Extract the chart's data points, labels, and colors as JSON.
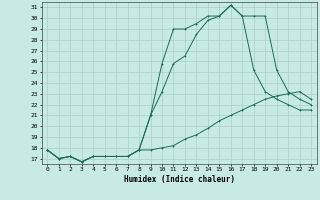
{
  "xlabel": "Humidex (Indice chaleur)",
  "bg_color": "#c8eae4",
  "line_color": "#1a6b5a",
  "grid_color": "#a8cfc8",
  "xlim": [
    -0.5,
    23.5
  ],
  "ylim": [
    16.5,
    31.5
  ],
  "xticks": [
    0,
    1,
    2,
    3,
    4,
    5,
    6,
    7,
    8,
    9,
    10,
    11,
    12,
    13,
    14,
    15,
    16,
    17,
    18,
    19,
    20,
    21,
    22,
    23
  ],
  "yticks": [
    17,
    18,
    19,
    20,
    21,
    22,
    23,
    24,
    25,
    26,
    27,
    28,
    29,
    30,
    31
  ],
  "line1_x": [
    0,
    1,
    2,
    3,
    4,
    5,
    6,
    7,
    8,
    9,
    10,
    11,
    12,
    13,
    14,
    15,
    16,
    17,
    18,
    19,
    20,
    21,
    22,
    23
  ],
  "line1_y": [
    17.8,
    17.0,
    17.2,
    16.7,
    17.2,
    17.2,
    17.2,
    17.2,
    17.8,
    21.0,
    25.8,
    29.0,
    29.0,
    29.5,
    30.2,
    30.2,
    31.2,
    30.2,
    30.2,
    30.2,
    25.2,
    23.2,
    22.5,
    22.0
  ],
  "line2_x": [
    0,
    1,
    2,
    3,
    4,
    5,
    6,
    7,
    8,
    9,
    10,
    11,
    12,
    13,
    14,
    15,
    16,
    17,
    18,
    19,
    20,
    21,
    22,
    23
  ],
  "line2_y": [
    17.8,
    17.0,
    17.2,
    16.7,
    17.2,
    17.2,
    17.2,
    17.2,
    17.8,
    21.0,
    23.2,
    25.8,
    26.5,
    28.5,
    29.8,
    30.2,
    31.2,
    30.2,
    25.2,
    23.2,
    22.5,
    22.0,
    21.5,
    21.5
  ],
  "line3_x": [
    0,
    1,
    2,
    3,
    4,
    5,
    6,
    7,
    8,
    9,
    10,
    11,
    12,
    13,
    14,
    15,
    16,
    17,
    18,
    19,
    20,
    21,
    22,
    23
  ],
  "line3_y": [
    17.8,
    17.0,
    17.2,
    16.7,
    17.2,
    17.2,
    17.2,
    17.2,
    17.8,
    17.8,
    18.0,
    18.2,
    18.8,
    19.2,
    19.8,
    20.5,
    21.0,
    21.5,
    22.0,
    22.5,
    22.8,
    23.0,
    23.2,
    22.5
  ]
}
